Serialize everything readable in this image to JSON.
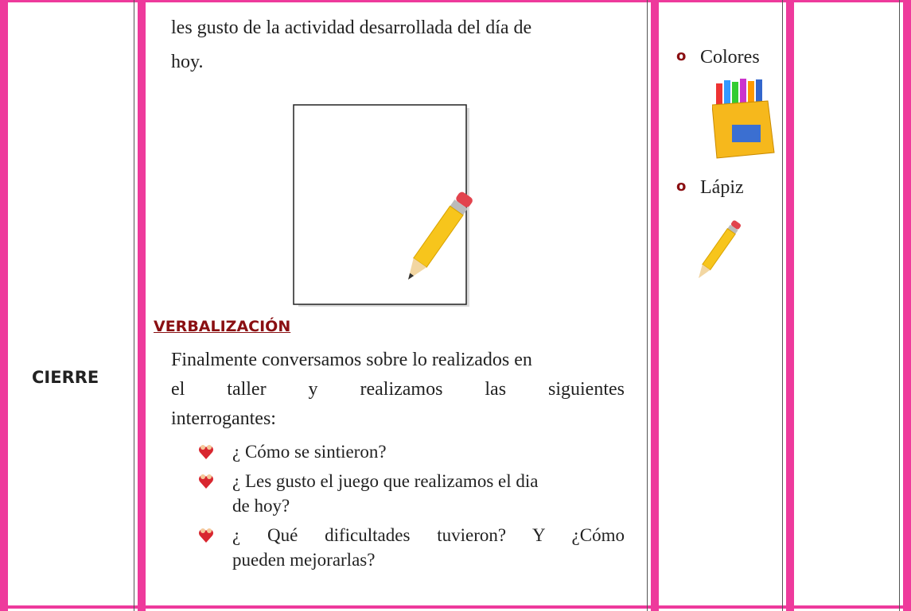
{
  "table": {
    "rows": [
      {
        "stage": "CIERRE",
        "activity": {
          "intro_lines": [
            "les gusto de la actividad desarrollada del día de",
            "hoy."
          ],
          "heading": "VERBALIZACIÓN",
          "paragraph_lines": [
            "Finalmente conversamos sobre lo realizados en",
            "el taller y realizamos las siguientes",
            "interrogantes:"
          ],
          "questions": [
            [
              "¿ Cómo se sintieron?"
            ],
            [
              "¿ Les gusto el juego que realizamos el dia",
              "de hoy?"
            ],
            [
              "¿ Qué dificultades tuvieron? Y ¿Cómo",
              "pueden mejorarlas?"
            ]
          ]
        },
        "materials": [
          "Colores",
          "Lápiz"
        ]
      }
    ]
  }
}
